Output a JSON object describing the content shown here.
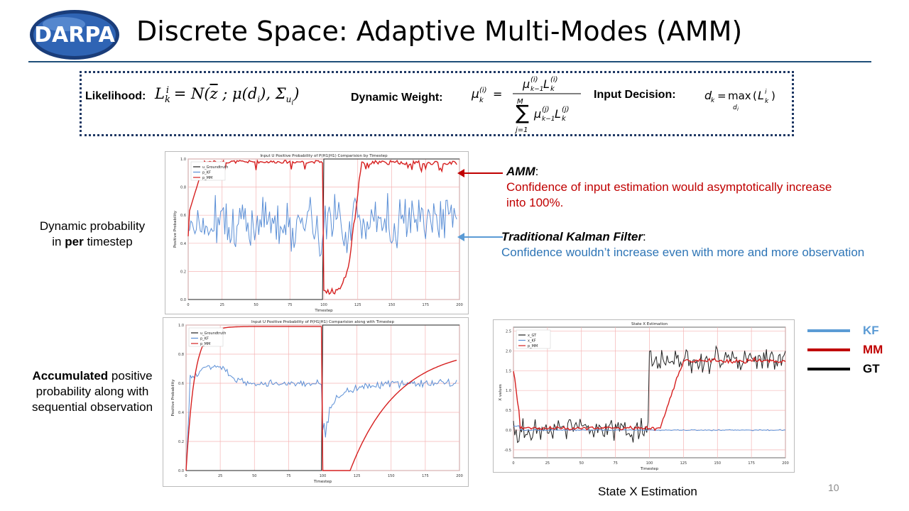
{
  "slide": {
    "logo_text": "DARPA",
    "title": "Discrete Space: Adaptive Multi-Modes (AMM)",
    "page_number": "10"
  },
  "formulas": {
    "likelihood_label": "Likelihood:",
    "dynamic_weight_label": "Dynamic Weight:",
    "input_decision_label": "Input Decision:"
  },
  "left_labels": {
    "dynamic_line1": "Dynamic probability",
    "dynamic_line2_pre": "in ",
    "dynamic_line2_bold": "per",
    "dynamic_line2_post": " timestep",
    "accum_bold": "Accumulated",
    "accum_rest1": " positive",
    "accum_line2": "probability along with",
    "accum_line3": "sequential observation"
  },
  "annotations": {
    "amm_title": "AMM",
    "amm_text_line1": "Confidence of input estimation would asymptotically increase",
    "amm_text_line2": "into 100%.",
    "kf_title": "Traditional Kalman Filter",
    "kf_text": "Confidence wouldn’t increase even with more and more observation"
  },
  "legend_box": {
    "items": [
      {
        "label": "KF",
        "color": "#5b9bd5"
      },
      {
        "label": "MM",
        "color": "#c00000"
      },
      {
        "label": "GT",
        "color": "#000000"
      }
    ]
  },
  "caption_state": "State X Estimation",
  "colors": {
    "kf": "#5b8fd6",
    "mm": "#d62020",
    "gt": "#222222",
    "amm_text": "#c00000",
    "kf_text": "#2e75b6",
    "rule": "#1f4e79"
  },
  "chart_data": [
    {
      "type": "line",
      "title": "Input U Positive Probability of P(H1|H1) Comparision by Timestep",
      "xlabel": "Timestep",
      "ylabel": "Positive Probability",
      "xlim": [
        0,
        200
      ],
      "ylim": [
        0,
        1.0
      ],
      "xticks": [
        "0",
        "25",
        "50",
        "75",
        "100",
        "125",
        "150",
        "175",
        "200"
      ],
      "yticks": [
        "0.0",
        "0.2",
        "0.4",
        "0.6",
        "0.8",
        "1.0"
      ],
      "grid": true,
      "legend_position": "top-left",
      "legend": [
        "u_Groundtruth",
        "p_KF",
        "p_MM"
      ],
      "series": [
        {
          "name": "u_Groundtruth",
          "description": "0 for timestep 0-99, 1 for 100-200"
        },
        {
          "name": "p_KF",
          "description": "noisy around 0.55, range ~0.3-0.8"
        },
        {
          "name": "p_MM",
          "description": "rises to ~0.98 by t=10, drops to ~0.03 at t=100, recovers to ~0.98 by t=125"
        }
      ]
    },
    {
      "type": "line",
      "title": "Input U Positive Probability of P(H1|H1) Comparision along with Timestep",
      "xlabel": "Timestep",
      "ylabel": "Positive Probability",
      "xlim": [
        0,
        200
      ],
      "ylim": [
        0,
        1.0
      ],
      "xticks": [
        "0",
        "25",
        "50",
        "75",
        "100",
        "125",
        "150",
        "175",
        "200"
      ],
      "yticks": [
        "0.0",
        "0.2",
        "0.4",
        "0.6",
        "0.8",
        "1.0"
      ],
      "grid": true,
      "legend_position": "top-left",
      "legend": [
        "u_Groundtruth",
        "p_KF",
        "p_MM"
      ],
      "series": [
        {
          "name": "u_Groundtruth",
          "description": "0 for 0-99, 1 for 100-200"
        },
        {
          "name": "p_KF",
          "description": "rises to ~0.75, settles ~0.6; drops near 0.3 at t=100, returns to ~0.6"
        },
        {
          "name": "p_MM",
          "description": "rises to ~0.99 quickly, 0 at t=100-120, then rises to ~0.79 at t=200"
        }
      ]
    },
    {
      "type": "line",
      "title": "State X Estimation",
      "xlabel": "Timestep",
      "ylabel": "X values",
      "xlim": [
        0,
        200
      ],
      "ylim": [
        -0.7,
        2.6
      ],
      "xticks": [
        "0",
        "25",
        "50",
        "75",
        "100",
        "125",
        "150",
        "175",
        "200"
      ],
      "yticks": [
        "-0.5",
        "0.0",
        "0.5",
        "1.0",
        "1.5",
        "2.0",
        "2.5"
      ],
      "grid": true,
      "legend_position": "top-left",
      "legend": [
        "x_GT",
        "x_KF",
        "p_MM"
      ],
      "series": [
        {
          "name": "x_GT",
          "description": "noisy around 0 for 0-99, noisy around 1.75 for 100-200"
        },
        {
          "name": "x_KF",
          "description": "stays near 0 throughout"
        },
        {
          "name": "p_MM",
          "description": "starts 1.5, settles near 0, rises to ~1.75 around t=115-125"
        }
      ]
    }
  ]
}
